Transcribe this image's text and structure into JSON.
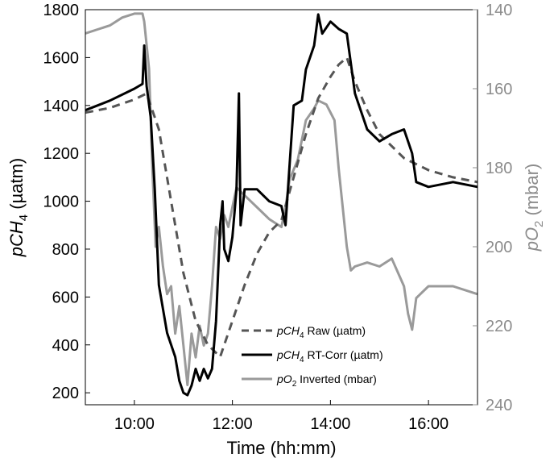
{
  "chart_data": {
    "type": "line",
    "x_unit": "hh:mm",
    "xlabel": "Time (hh:mm)",
    "xlim": [
      "09:00",
      "17:00"
    ],
    "x_tick_labels": [
      "10:00",
      "12:00",
      "14:00",
      "16:00"
    ],
    "y_left": {
      "label_main": "pCH",
      "label_sub": "4",
      "label_unit": " (µatm)",
      "lim": [
        150,
        1800
      ],
      "ticks": [
        200,
        400,
        600,
        800,
        1000,
        1200,
        1400,
        1600,
        1800
      ]
    },
    "y_right": {
      "label_main": "pO",
      "label_sub": "2",
      "label_unit": " (mbar)",
      "lim": [
        140,
        240
      ],
      "inverted": true,
      "ticks": [
        140,
        160,
        180,
        200,
        220,
        240
      ],
      "color": "#8c8c8c"
    },
    "grid": false,
    "legend_position": "bottom-center",
    "series": [
      {
        "name": "pCH4 Raw (µatm)",
        "legend": {
          "main": "pCH",
          "sub": "4",
          "rest": " Raw (µatm)"
        },
        "axis": "left",
        "color": "#555555",
        "style": "dashed",
        "points": [
          [
            "09:00",
            1370
          ],
          [
            "09:30",
            1390
          ],
          [
            "10:00",
            1425
          ],
          [
            "10:15",
            1450
          ],
          [
            "10:30",
            1300
          ],
          [
            "10:45",
            1000
          ],
          [
            "11:00",
            700
          ],
          [
            "11:15",
            500
          ],
          [
            "11:30",
            400
          ],
          [
            "11:45",
            350
          ],
          [
            "12:00",
            500
          ],
          [
            "12:15",
            650
          ],
          [
            "12:30",
            780
          ],
          [
            "12:45",
            870
          ],
          [
            "13:00",
            920
          ],
          [
            "13:15",
            1100
          ],
          [
            "13:30",
            1280
          ],
          [
            "13:45",
            1430
          ],
          [
            "14:00",
            1520
          ],
          [
            "14:10",
            1570
          ],
          [
            "14:20",
            1600
          ],
          [
            "14:30",
            1500
          ],
          [
            "14:45",
            1380
          ],
          [
            "15:00",
            1280
          ],
          [
            "15:30",
            1180
          ],
          [
            "16:00",
            1130
          ],
          [
            "16:30",
            1100
          ],
          [
            "17:00",
            1080
          ]
        ]
      },
      {
        "name": "pCH4 RT-Corr (µatm)",
        "legend": {
          "main": "pCH",
          "sub": "4",
          "rest": " RT-Corr (µatm)"
        },
        "axis": "left",
        "color": "#000000",
        "style": "solid",
        "points": [
          [
            "09:00",
            1380
          ],
          [
            "09:30",
            1420
          ],
          [
            "10:00",
            1470
          ],
          [
            "10:10",
            1490
          ],
          [
            "10:12",
            1650
          ],
          [
            "10:15",
            1480
          ],
          [
            "10:20",
            1350
          ],
          [
            "10:25",
            1050
          ],
          [
            "10:30",
            650
          ],
          [
            "10:35",
            550
          ],
          [
            "10:40",
            450
          ],
          [
            "10:50",
            350
          ],
          [
            "10:55",
            250
          ],
          [
            "11:00",
            200
          ],
          [
            "11:05",
            190
          ],
          [
            "11:10",
            230
          ],
          [
            "11:15",
            300
          ],
          [
            "11:20",
            250
          ],
          [
            "11:25",
            300
          ],
          [
            "11:30",
            260
          ],
          [
            "11:35",
            300
          ],
          [
            "11:40",
            500
          ],
          [
            "11:45",
            900
          ],
          [
            "11:48",
            1000
          ],
          [
            "11:50",
            800
          ],
          [
            "11:55",
            750
          ],
          [
            "12:00",
            850
          ],
          [
            "12:05",
            1050
          ],
          [
            "12:08",
            1450
          ],
          [
            "12:10",
            900
          ],
          [
            "12:15",
            1050
          ],
          [
            "12:30",
            1050
          ],
          [
            "12:45",
            1000
          ],
          [
            "13:00",
            980
          ],
          [
            "13:05",
            900
          ],
          [
            "13:10",
            1150
          ],
          [
            "13:15",
            1400
          ],
          [
            "13:25",
            1420
          ],
          [
            "13:30",
            1550
          ],
          [
            "13:40",
            1650
          ],
          [
            "13:45",
            1780
          ],
          [
            "13:50",
            1700
          ],
          [
            "14:00",
            1750
          ],
          [
            "14:10",
            1720
          ],
          [
            "14:20",
            1700
          ],
          [
            "14:30",
            1450
          ],
          [
            "14:45",
            1300
          ],
          [
            "15:00",
            1250
          ],
          [
            "15:15",
            1280
          ],
          [
            "15:30",
            1300
          ],
          [
            "15:40",
            1200
          ],
          [
            "15:45",
            1080
          ],
          [
            "16:00",
            1060
          ],
          [
            "16:30",
            1080
          ],
          [
            "17:00",
            1060
          ]
        ]
      },
      {
        "name": "pO2 Inverted (mbar)",
        "legend": {
          "main": "pO",
          "sub": "2",
          "rest": " Inverted (mbar)"
        },
        "axis": "right",
        "color": "#9a9a9a",
        "style": "solid",
        "points": [
          [
            "09:00",
            146
          ],
          [
            "09:15",
            145
          ],
          [
            "09:30",
            144
          ],
          [
            "09:45",
            142
          ],
          [
            "10:00",
            141
          ],
          [
            "10:10",
            141
          ],
          [
            "10:12",
            143
          ],
          [
            "10:18",
            155
          ],
          [
            "10:22",
            180
          ],
          [
            "10:26",
            200
          ],
          [
            "10:30",
            195
          ],
          [
            "10:35",
            205
          ],
          [
            "10:40",
            212
          ],
          [
            "10:45",
            210
          ],
          [
            "10:50",
            222
          ],
          [
            "10:55",
            215
          ],
          [
            "11:00",
            225
          ],
          [
            "11:05",
            235
          ],
          [
            "11:10",
            222
          ],
          [
            "11:15",
            228
          ],
          [
            "11:20",
            220
          ],
          [
            "11:25",
            225
          ],
          [
            "11:30",
            222
          ],
          [
            "11:35",
            210
          ],
          [
            "11:40",
            195
          ],
          [
            "11:45",
            198
          ],
          [
            "11:50",
            192
          ],
          [
            "11:55",
            195
          ],
          [
            "12:00",
            190
          ],
          [
            "12:05",
            185
          ],
          [
            "12:15",
            187
          ],
          [
            "12:30",
            190
          ],
          [
            "12:45",
            193
          ],
          [
            "13:00",
            195
          ],
          [
            "13:05",
            190
          ],
          [
            "13:10",
            183
          ],
          [
            "13:20",
            178
          ],
          [
            "13:30",
            168
          ],
          [
            "13:40",
            165
          ],
          [
            "13:45",
            163
          ],
          [
            "13:55",
            164
          ],
          [
            "14:05",
            168
          ],
          [
            "14:10",
            180
          ],
          [
            "14:15",
            190
          ],
          [
            "14:20",
            200
          ],
          [
            "14:25",
            206
          ],
          [
            "14:30",
            205
          ],
          [
            "14:45",
            204
          ],
          [
            "15:00",
            205
          ],
          [
            "15:15",
            203
          ],
          [
            "15:30",
            210
          ],
          [
            "15:35",
            217
          ],
          [
            "15:40",
            221
          ],
          [
            "15:45",
            213
          ],
          [
            "16:00",
            210
          ],
          [
            "16:30",
            210
          ],
          [
            "17:00",
            212
          ]
        ]
      }
    ]
  }
}
